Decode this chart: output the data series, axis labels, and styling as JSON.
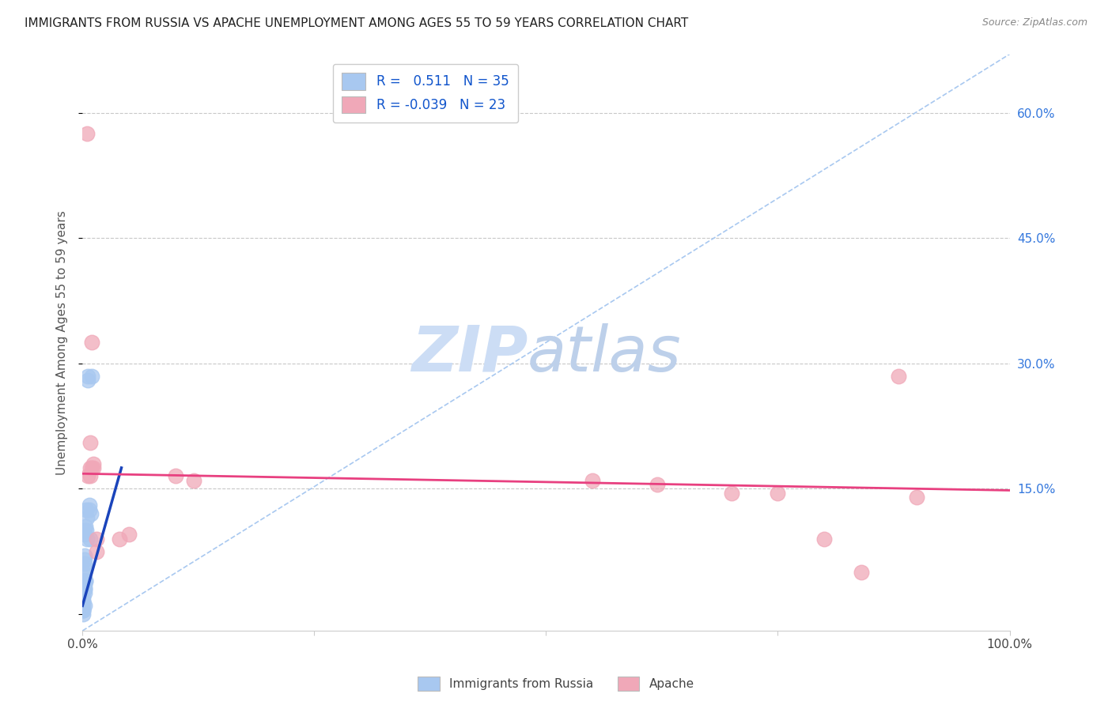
{
  "title": "IMMIGRANTS FROM RUSSIA VS APACHE UNEMPLOYMENT AMONG AGES 55 TO 59 YEARS CORRELATION CHART",
  "source": "Source: ZipAtlas.com",
  "ylabel": "Unemployment Among Ages 55 to 59 years",
  "ytick_labels": [
    "",
    "15.0%",
    "30.0%",
    "45.0%",
    "60.0%"
  ],
  "ytick_values": [
    0.0,
    0.15,
    0.3,
    0.45,
    0.6
  ],
  "xlim": [
    0.0,
    1.0
  ],
  "ylim": [
    -0.02,
    0.67
  ],
  "legend_label1": "Immigrants from Russia",
  "legend_label2": "Apache",
  "R1": "0.511",
  "N1": "35",
  "R2": "-0.039",
  "N2": "23",
  "background_color": "#ffffff",
  "grid_color": "#c8c8c8",
  "blue_scatter_color": "#a8c8f0",
  "pink_scatter_color": "#f0a8b8",
  "blue_line_color": "#1a44bb",
  "pink_line_color": "#e84080",
  "diag_line_color": "#a8c8f0",
  "right_label_color": "#3377dd",
  "title_color": "#222222",
  "source_color": "#888888",
  "scatter_blue": [
    [
      0.001,
      0.01
    ],
    [
      0.001,
      0.005
    ],
    [
      0.001,
      0.005
    ],
    [
      0.001,
      0.0
    ],
    [
      0.001,
      0.02
    ],
    [
      0.001,
      0.015
    ],
    [
      0.002,
      0.07
    ],
    [
      0.002,
      0.065
    ],
    [
      0.002,
      0.06
    ],
    [
      0.002,
      0.055
    ],
    [
      0.001,
      0.05
    ],
    [
      0.002,
      0.03
    ],
    [
      0.002,
      0.025
    ],
    [
      0.002,
      0.03
    ],
    [
      0.002,
      0.035
    ],
    [
      0.001,
      0.04
    ],
    [
      0.003,
      0.04
    ],
    [
      0.003,
      0.04
    ],
    [
      0.002,
      0.095
    ],
    [
      0.002,
      0.1
    ],
    [
      0.003,
      0.105
    ],
    [
      0.004,
      0.1
    ],
    [
      0.005,
      0.115
    ],
    [
      0.006,
      0.28
    ],
    [
      0.006,
      0.285
    ],
    [
      0.007,
      0.13
    ],
    [
      0.009,
      0.12
    ],
    [
      0.01,
      0.285
    ],
    [
      0.007,
      0.125
    ],
    [
      0.008,
      0.09
    ],
    [
      0.005,
      0.09
    ],
    [
      0.004,
      0.125
    ],
    [
      0.001,
      0.015
    ],
    [
      0.001,
      0.005
    ],
    [
      0.002,
      0.01
    ]
  ],
  "scatter_pink": [
    [
      0.005,
      0.575
    ],
    [
      0.01,
      0.325
    ],
    [
      0.008,
      0.205
    ],
    [
      0.008,
      0.175
    ],
    [
      0.01,
      0.175
    ],
    [
      0.012,
      0.175
    ],
    [
      0.012,
      0.18
    ],
    [
      0.008,
      0.165
    ],
    [
      0.006,
      0.165
    ],
    [
      0.015,
      0.09
    ],
    [
      0.015,
      0.075
    ],
    [
      0.04,
      0.09
    ],
    [
      0.05,
      0.095
    ],
    [
      0.1,
      0.165
    ],
    [
      0.12,
      0.16
    ],
    [
      0.55,
      0.16
    ],
    [
      0.62,
      0.155
    ],
    [
      0.7,
      0.145
    ],
    [
      0.75,
      0.145
    ],
    [
      0.8,
      0.09
    ],
    [
      0.84,
      0.05
    ],
    [
      0.88,
      0.285
    ],
    [
      0.9,
      0.14
    ]
  ],
  "blue_trend_x": [
    0.0,
    0.042
  ],
  "blue_trend_y": [
    0.01,
    0.175
  ],
  "pink_trend_x": [
    0.0,
    1.0
  ],
  "pink_trend_y": [
    0.168,
    0.148
  ]
}
